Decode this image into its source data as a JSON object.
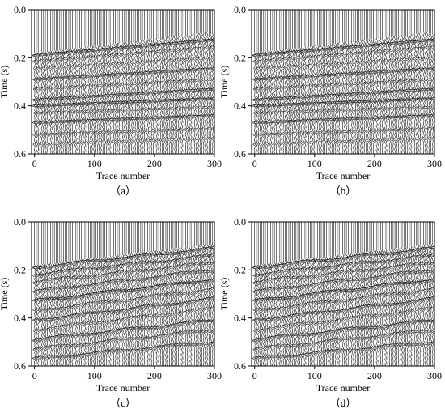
{
  "figure": {
    "panels": [
      "a",
      "b",
      "c",
      "d"
    ]
  },
  "chart_data": [
    {
      "panel": "a",
      "caption": "（a）",
      "type": "wiggle",
      "xlabel": "Trace number",
      "ylabel": "Time (s)",
      "xlim": [
        -5,
        300
      ],
      "ylim": [
        0.6,
        0.0
      ],
      "xticks": [
        0,
        100,
        200,
        300
      ],
      "yticks": [
        0.0,
        0.2,
        0.4,
        0.6
      ],
      "first_arrival": {
        "trace": [
          0,
          300
        ],
        "time": [
          0.18,
          0.09
        ]
      },
      "events": [
        {
          "time_at_trace0": 0.19,
          "time_at_trace300": 0.125,
          "strength": 1.0
        },
        {
          "time_at_trace0": 0.215,
          "time_at_trace300": 0.155,
          "strength": 0.6
        },
        {
          "time_at_trace0": 0.245,
          "time_at_trace300": 0.2,
          "strength": 0.5
        },
        {
          "time_at_trace0": 0.29,
          "time_at_trace300": 0.245,
          "strength": 0.9
        },
        {
          "time_at_trace0": 0.33,
          "time_at_trace300": 0.29,
          "strength": 0.6
        },
        {
          "time_at_trace0": 0.375,
          "time_at_trace300": 0.33,
          "strength": 0.9
        },
        {
          "time_at_trace0": 0.4,
          "time_at_trace300": 0.37,
          "strength": 1.0
        },
        {
          "time_at_trace0": 0.43,
          "time_at_trace300": 0.405,
          "strength": 0.6
        },
        {
          "time_at_trace0": 0.47,
          "time_at_trace300": 0.44,
          "strength": 0.9
        },
        {
          "time_at_trace0": 0.52,
          "time_at_trace300": 0.495,
          "strength": 0.6
        },
        {
          "time_at_trace0": 0.56,
          "time_at_trace300": 0.535,
          "strength": 0.5
        }
      ]
    },
    {
      "panel": "b",
      "caption": "（b）",
      "type": "wiggle",
      "xlabel": "Trace number",
      "ylabel": "Time (s)",
      "xlim": [
        -5,
        300
      ],
      "ylim": [
        0.6,
        0.0
      ],
      "xticks": [
        0,
        100,
        200,
        300
      ],
      "yticks": [
        0.0,
        0.2,
        0.4,
        0.6
      ],
      "first_arrival": {
        "trace": [
          0,
          300
        ],
        "time": [
          0.18,
          0.09
        ]
      },
      "events": [
        {
          "time_at_trace0": 0.19,
          "time_at_trace300": 0.125,
          "strength": 1.0
        },
        {
          "time_at_trace0": 0.215,
          "time_at_trace300": 0.155,
          "strength": 0.6
        },
        {
          "time_at_trace0": 0.245,
          "time_at_trace300": 0.2,
          "strength": 0.5
        },
        {
          "time_at_trace0": 0.29,
          "time_at_trace300": 0.245,
          "strength": 0.9
        },
        {
          "time_at_trace0": 0.33,
          "time_at_trace300": 0.29,
          "strength": 0.6
        },
        {
          "time_at_trace0": 0.375,
          "time_at_trace300": 0.33,
          "strength": 0.9
        },
        {
          "time_at_trace0": 0.4,
          "time_at_trace300": 0.37,
          "strength": 1.0
        },
        {
          "time_at_trace0": 0.43,
          "time_at_trace300": 0.405,
          "strength": 0.6
        },
        {
          "time_at_trace0": 0.47,
          "time_at_trace300": 0.44,
          "strength": 0.9
        },
        {
          "time_at_trace0": 0.52,
          "time_at_trace300": 0.495,
          "strength": 0.6
        },
        {
          "time_at_trace0": 0.56,
          "time_at_trace300": 0.535,
          "strength": 0.5
        }
      ]
    },
    {
      "panel": "c",
      "caption": "（c）",
      "type": "wiggle",
      "xlabel": "Trace number",
      "ylabel": "Time (s)",
      "xlim": [
        -5,
        300
      ],
      "ylim": [
        0.6,
        0.0
      ],
      "xticks": [
        0,
        100,
        200,
        300
      ],
      "yticks": [
        0.0,
        0.2,
        0.4,
        0.6
      ],
      "first_arrival": {
        "trace": [
          0,
          300
        ],
        "time": [
          0.18,
          0.09
        ]
      },
      "events": [
        {
          "time_at_trace0": 0.19,
          "time_at_trace300": 0.11,
          "strength": 1.0
        },
        {
          "time_at_trace0": 0.22,
          "time_at_trace300": 0.14,
          "strength": 0.8
        },
        {
          "time_at_trace0": 0.25,
          "time_at_trace300": 0.17,
          "strength": 0.7
        },
        {
          "time_at_trace0": 0.29,
          "time_at_trace300": 0.2,
          "strength": 0.8
        },
        {
          "time_at_trace0": 0.33,
          "time_at_trace300": 0.24,
          "strength": 1.0
        },
        {
          "time_at_trace0": 0.37,
          "time_at_trace300": 0.28,
          "strength": 0.7
        },
        {
          "time_at_trace0": 0.41,
          "time_at_trace300": 0.32,
          "strength": 0.9
        },
        {
          "time_at_trace0": 0.45,
          "time_at_trace300": 0.36,
          "strength": 0.6
        },
        {
          "time_at_trace0": 0.49,
          "time_at_trace300": 0.41,
          "strength": 0.9
        },
        {
          "time_at_trace0": 0.53,
          "time_at_trace300": 0.45,
          "strength": 0.7
        },
        {
          "time_at_trace0": 0.57,
          "time_at_trace300": 0.5,
          "strength": 0.8
        }
      ]
    },
    {
      "panel": "d",
      "caption": "（d）",
      "type": "wiggle",
      "xlabel": "Trace number",
      "ylabel": "Time (s)",
      "xlim": [
        -5,
        300
      ],
      "ylim": [
        0.6,
        0.0
      ],
      "xticks": [
        0,
        100,
        200,
        300
      ],
      "yticks": [
        0.0,
        0.2,
        0.4,
        0.6
      ],
      "first_arrival": {
        "trace": [
          0,
          300
        ],
        "time": [
          0.18,
          0.09
        ]
      },
      "events": [
        {
          "time_at_trace0": 0.19,
          "time_at_trace300": 0.11,
          "strength": 1.0
        },
        {
          "time_at_trace0": 0.22,
          "time_at_trace300": 0.14,
          "strength": 0.8
        },
        {
          "time_at_trace0": 0.25,
          "time_at_trace300": 0.17,
          "strength": 0.7
        },
        {
          "time_at_trace0": 0.29,
          "time_at_trace300": 0.2,
          "strength": 0.8
        },
        {
          "time_at_trace0": 0.33,
          "time_at_trace300": 0.24,
          "strength": 1.0
        },
        {
          "time_at_trace0": 0.37,
          "time_at_trace300": 0.28,
          "strength": 0.7
        },
        {
          "time_at_trace0": 0.41,
          "time_at_trace300": 0.32,
          "strength": 0.9
        },
        {
          "time_at_trace0": 0.45,
          "time_at_trace300": 0.36,
          "strength": 0.6
        },
        {
          "time_at_trace0": 0.49,
          "time_at_trace300": 0.41,
          "strength": 0.9
        },
        {
          "time_at_trace0": 0.53,
          "time_at_trace300": 0.45,
          "strength": 0.7
        },
        {
          "time_at_trace0": 0.57,
          "time_at_trace300": 0.5,
          "strength": 0.8
        }
      ]
    }
  ]
}
